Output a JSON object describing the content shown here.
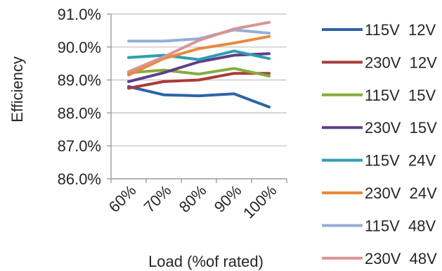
{
  "chart_data": {
    "type": "line",
    "title": "",
    "xlabel": "Load (%of rated)",
    "ylabel": "Efficiency",
    "categories": [
      "60%",
      "70%",
      "80%",
      "90%",
      "100%"
    ],
    "ylim": [
      86.0,
      91.0
    ],
    "yticks": [
      "86.0%",
      "87.0%",
      "88.0%",
      "89.0%",
      "90.0%",
      "91.0%"
    ],
    "grid": true,
    "legend_position": "right",
    "series": [
      {
        "name": "115V  12V",
        "color": "#2E64A8",
        "values": [
          88.8,
          88.55,
          88.52,
          88.58,
          88.18
        ]
      },
      {
        "name": "230V  12V",
        "color": "#A83C3C",
        "values": [
          88.75,
          88.95,
          89.0,
          89.2,
          89.2
        ]
      },
      {
        "name": "115V  15V",
        "color": "#86AC3C",
        "values": [
          89.22,
          89.3,
          89.18,
          89.35,
          89.12
        ]
      },
      {
        "name": "230V  15V",
        "color": "#5E3F8A",
        "values": [
          88.95,
          89.22,
          89.55,
          89.75,
          89.8
        ]
      },
      {
        "name": "115V  24V",
        "color": "#2E9EB0",
        "values": [
          89.68,
          89.75,
          89.62,
          89.88,
          89.65
        ]
      },
      {
        "name": "230V  24V",
        "color": "#E88A3C",
        "values": [
          89.15,
          89.65,
          89.95,
          90.12,
          90.32
        ]
      },
      {
        "name": "115V  48V",
        "color": "#94AED6",
        "values": [
          90.18,
          90.18,
          90.25,
          90.52,
          90.42
        ]
      },
      {
        "name": "230V  48V",
        "color": "#D89496",
        "values": [
          89.25,
          89.7,
          90.2,
          90.55,
          90.75
        ]
      }
    ]
  }
}
